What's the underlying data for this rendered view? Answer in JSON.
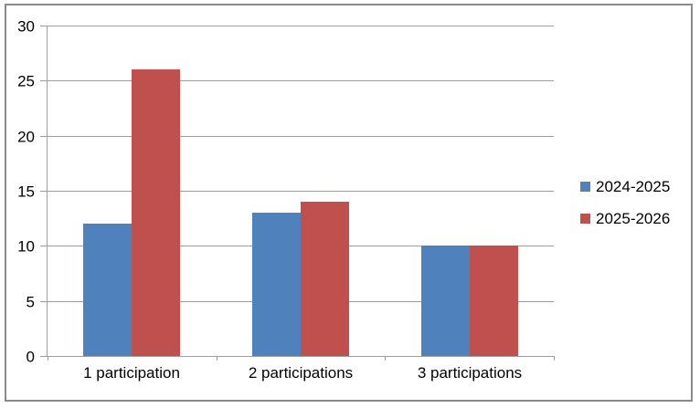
{
  "chart_data": {
    "type": "bar",
    "title": "",
    "xlabel": "",
    "ylabel": "",
    "categories": [
      "1 participation",
      "2 participations",
      "3 participations"
    ],
    "series": [
      {
        "name": "2024-2025",
        "color": "#4F81BD",
        "values": [
          12,
          13,
          10
        ]
      },
      {
        "name": "2025-2026",
        "color": "#C0504D",
        "values": [
          26,
          14,
          10
        ]
      }
    ],
    "ylim": [
      0,
      30
    ],
    "yticks": [
      0,
      5,
      10,
      15,
      20,
      25,
      30
    ],
    "grid": true,
    "legend_position": "right"
  },
  "colors": {
    "gridline": "#9e9e9e",
    "axis": "#9e9e9e",
    "text": "#000000",
    "frame_border": "#8a8a8a",
    "background": "#ffffff",
    "series_blue": "#4F81BD",
    "series_red": "#C0504D"
  }
}
